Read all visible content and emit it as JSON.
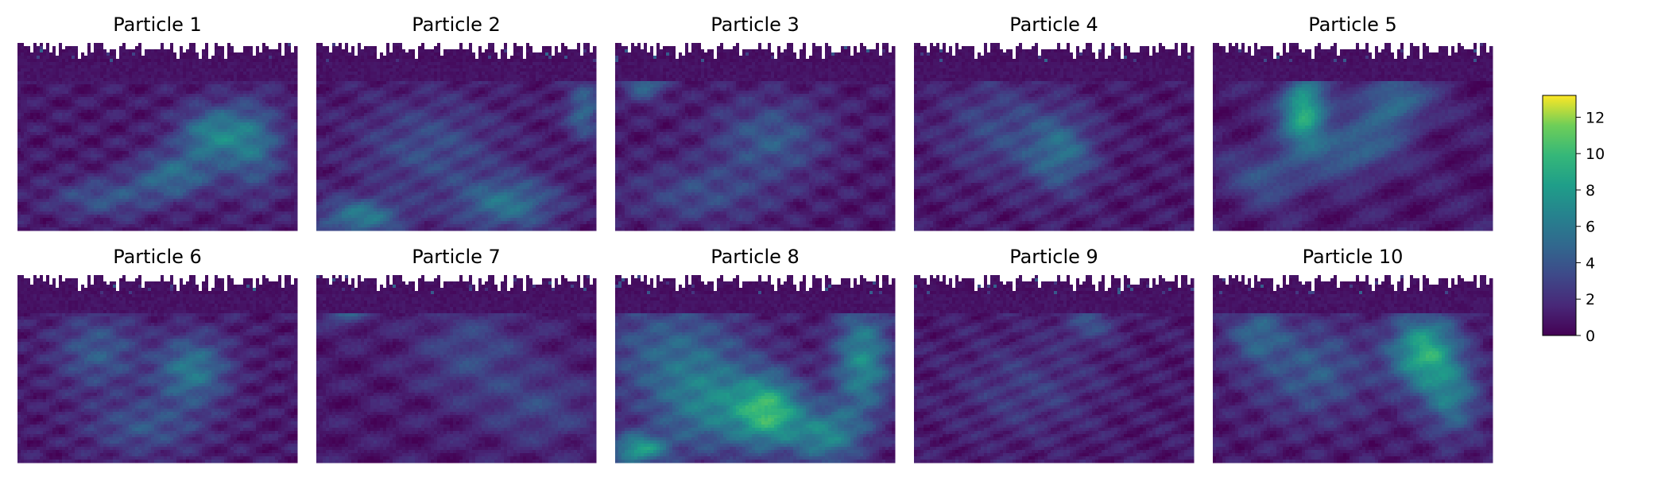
{
  "chart_data": {
    "type": "heatmap",
    "panels": [
      {
        "title": "Particle 1",
        "hotspots": [
          [
            0.7,
            0.48,
            0.13,
            0.15,
            5.5
          ],
          [
            0.55,
            0.7,
            0.14,
            0.12,
            4.2
          ],
          [
            0.3,
            0.82,
            0.18,
            0.1,
            3.0
          ],
          [
            0.85,
            0.55,
            0.1,
            0.25,
            3.5
          ]
        ]
      },
      {
        "title": "Particle 2",
        "hotspots": [
          [
            0.15,
            0.92,
            0.15,
            0.1,
            5.0
          ],
          [
            0.68,
            0.85,
            0.18,
            0.14,
            4.5
          ],
          [
            0.95,
            0.35,
            0.06,
            0.15,
            4.0
          ],
          [
            0.4,
            0.55,
            0.25,
            0.25,
            2.5
          ]
        ]
      },
      {
        "title": "Particle 3",
        "hotspots": [
          [
            0.55,
            0.5,
            0.2,
            0.2,
            3.2
          ],
          [
            0.1,
            0.2,
            0.08,
            0.1,
            4.0
          ],
          [
            0.3,
            0.8,
            0.25,
            0.15,
            2.4
          ]
        ]
      },
      {
        "title": "Particle 4",
        "hotspots": [
          [
            0.52,
            0.58,
            0.12,
            0.2,
            4.0
          ],
          [
            0.7,
            0.1,
            0.05,
            0.06,
            6.0
          ],
          [
            0.3,
            0.45,
            0.2,
            0.25,
            2.2
          ]
        ]
      },
      {
        "title": "Particle 5",
        "hotspots": [
          [
            0.32,
            0.35,
            0.08,
            0.18,
            8.5
          ],
          [
            0.5,
            0.55,
            0.15,
            0.15,
            4.0
          ],
          [
            0.65,
            0.3,
            0.12,
            0.15,
            4.5
          ],
          [
            0.2,
            0.7,
            0.15,
            0.15,
            3.0
          ]
        ]
      },
      {
        "title": "Particle 6",
        "hotspots": [
          [
            0.62,
            0.5,
            0.13,
            0.18,
            5.0
          ],
          [
            0.28,
            0.4,
            0.15,
            0.2,
            3.2
          ],
          [
            0.78,
            0.1,
            0.05,
            0.06,
            6.0
          ],
          [
            0.45,
            0.8,
            0.2,
            0.15,
            2.8
          ]
        ]
      },
      {
        "title": "Particle 7",
        "hotspots": [
          [
            0.1,
            0.15,
            0.08,
            0.1,
            4.5
          ],
          [
            0.55,
            0.4,
            0.2,
            0.25,
            2.2
          ],
          [
            0.8,
            0.7,
            0.2,
            0.2,
            2.0
          ]
        ]
      },
      {
        "title": "Particle 8",
        "hotspots": [
          [
            0.55,
            0.72,
            0.12,
            0.18,
            7.5
          ],
          [
            0.08,
            0.92,
            0.1,
            0.08,
            7.0
          ],
          [
            0.88,
            0.45,
            0.1,
            0.3,
            6.0
          ],
          [
            0.35,
            0.7,
            0.2,
            0.25,
            4.5
          ],
          [
            0.75,
            0.85,
            0.12,
            0.15,
            5.5
          ],
          [
            0.2,
            0.4,
            0.25,
            0.3,
            3.5
          ]
        ]
      },
      {
        "title": "Particle 9",
        "hotspots": [
          [
            0.62,
            0.25,
            0.1,
            0.1,
            2.5
          ],
          [
            0.4,
            0.6,
            0.25,
            0.25,
            1.6
          ]
        ]
      },
      {
        "title": "Particle 10",
        "hotspots": [
          [
            0.75,
            0.4,
            0.12,
            0.2,
            8.0
          ],
          [
            0.85,
            0.65,
            0.1,
            0.2,
            4.5
          ],
          [
            0.35,
            0.5,
            0.2,
            0.25,
            3.2
          ],
          [
            0.15,
            0.3,
            0.1,
            0.15,
            3.5
          ]
        ]
      }
    ],
    "colorbar": {
      "colormap": "viridis",
      "vmin": 0,
      "vmax": 13.2,
      "ticks": [
        0,
        2,
        4,
        6,
        8,
        10,
        12
      ],
      "tick_labels": [
        "0",
        "2",
        "4",
        "6",
        "8",
        "10",
        "12"
      ]
    },
    "mask_color": "#ffffff"
  }
}
